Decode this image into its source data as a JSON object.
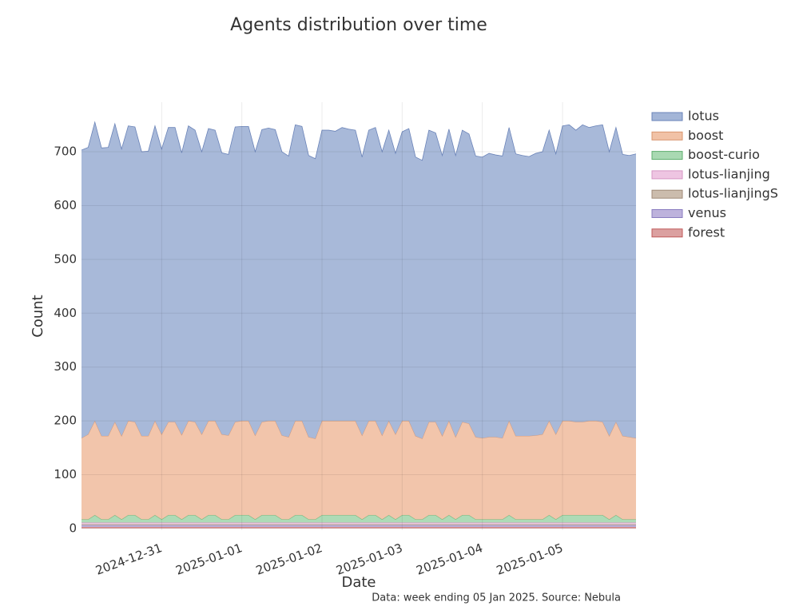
{
  "chart_data": {
    "type": "stacked-area",
    "title": "Agents distribution over time",
    "x_label": "Date",
    "y_label": "Count",
    "footnote": "Data: week ending 05 Jan 2025. Source: Nebula",
    "categories": [
      null,
      null,
      null,
      null,
      null,
      null,
      null,
      null,
      null,
      null,
      null,
      null,
      "2024-12-31",
      null,
      null,
      null,
      null,
      null,
      null,
      null,
      null,
      null,
      null,
      null,
      "2025-01-01",
      null,
      null,
      null,
      null,
      null,
      null,
      null,
      null,
      null,
      null,
      null,
      "2025-01-02",
      null,
      null,
      null,
      null,
      null,
      null,
      null,
      null,
      null,
      null,
      null,
      "2025-01-03",
      null,
      null,
      null,
      null,
      null,
      null,
      null,
      null,
      null,
      null,
      null,
      "2025-01-04",
      null,
      null,
      null,
      null,
      null,
      null,
      null,
      null,
      null,
      null,
      null,
      "2025-01-05",
      null,
      null,
      null,
      null,
      null,
      null,
      null,
      null,
      null,
      null,
      null
    ],
    "ylim": [
      -3,
      792
    ],
    "yticks": [
      0,
      100,
      200,
      300,
      400,
      500,
      600,
      700
    ],
    "grid": true,
    "legend": "right",
    "series": [
      {
        "name": "forest",
        "color": "#dba0a0",
        "line": "#c05a5a",
        "values": [
          3,
          3,
          3,
          3,
          3,
          3,
          3,
          3,
          3,
          3,
          3,
          3,
          3,
          3,
          3,
          3,
          3,
          3,
          3,
          3,
          3,
          3,
          3,
          3,
          3,
          3,
          3,
          3,
          3,
          3,
          3,
          3,
          3,
          3,
          3,
          3,
          3,
          3,
          3,
          3,
          3,
          3,
          3,
          3,
          3,
          3,
          3,
          3,
          3,
          3,
          3,
          3,
          3,
          3,
          3,
          3,
          3,
          3,
          3,
          3,
          3,
          3,
          3,
          3,
          3,
          3,
          3,
          3,
          3,
          3,
          3,
          3,
          3,
          3,
          3,
          3,
          3,
          3,
          3,
          3,
          3,
          3,
          3,
          3
        ]
      },
      {
        "name": "venus",
        "color": "#bdb2dc",
        "line": "#8a7cc0",
        "values": [
          3,
          3,
          3,
          3,
          3,
          3,
          3,
          3,
          3,
          3,
          3,
          3,
          3,
          3,
          3,
          3,
          3,
          3,
          3,
          3,
          3,
          3,
          3,
          3,
          3,
          3,
          3,
          3,
          3,
          3,
          3,
          3,
          3,
          3,
          3,
          3,
          3,
          3,
          3,
          3,
          3,
          3,
          3,
          3,
          3,
          3,
          3,
          3,
          3,
          3,
          3,
          3,
          3,
          3,
          3,
          3,
          3,
          3,
          3,
          3,
          3,
          3,
          3,
          3,
          3,
          3,
          3,
          3,
          3,
          3,
          3,
          3,
          3,
          3,
          3,
          3,
          3,
          3,
          3,
          3,
          3,
          3,
          3,
          3
        ]
      },
      {
        "name": "lotus-lianjingS",
        "color": "#cbbcad",
        "line": "#a08a78",
        "values": [
          2,
          2,
          2,
          2,
          2,
          2,
          2,
          2,
          2,
          2,
          2,
          2,
          2,
          2,
          2,
          2,
          2,
          2,
          2,
          2,
          2,
          2,
          2,
          2,
          2,
          2,
          2,
          2,
          2,
          2,
          2,
          2,
          2,
          2,
          2,
          2,
          2,
          2,
          2,
          2,
          2,
          2,
          2,
          2,
          2,
          2,
          2,
          2,
          2,
          2,
          2,
          2,
          2,
          2,
          2,
          2,
          2,
          2,
          2,
          2,
          2,
          2,
          2,
          2,
          2,
          2,
          2,
          2,
          2,
          2,
          2,
          2,
          2,
          2,
          2,
          2,
          2,
          2,
          2,
          2,
          2,
          2,
          2,
          2
        ]
      },
      {
        "name": "lotus-lianjing",
        "color": "#eec5e2",
        "line": "#d696c4",
        "values": [
          3,
          3,
          3,
          3,
          3,
          3,
          3,
          3,
          3,
          3,
          3,
          3,
          3,
          3,
          3,
          3,
          3,
          3,
          3,
          3,
          3,
          3,
          3,
          3,
          3,
          3,
          3,
          3,
          3,
          3,
          3,
          3,
          3,
          3,
          3,
          3,
          3,
          3,
          3,
          3,
          3,
          3,
          3,
          3,
          3,
          3,
          3,
          3,
          3,
          3,
          3,
          3,
          3,
          3,
          3,
          3,
          3,
          3,
          3,
          3,
          3,
          3,
          3,
          3,
          3,
          3,
          3,
          3,
          3,
          3,
          3,
          3,
          3,
          3,
          3,
          3,
          3,
          3,
          3,
          3,
          3,
          3,
          3,
          3
        ]
      },
      {
        "name": "boost-curio",
        "color": "#a9d9b2",
        "line": "#5fae6e",
        "values": [
          6,
          6,
          14,
          6,
          6,
          14,
          6,
          14,
          14,
          6,
          6,
          14,
          6,
          14,
          14,
          6,
          14,
          14,
          6,
          14,
          14,
          6,
          6,
          14,
          14,
          14,
          6,
          14,
          14,
          14,
          6,
          6,
          14,
          14,
          6,
          6,
          14,
          14,
          14,
          14,
          14,
          14,
          6,
          14,
          14,
          6,
          14,
          6,
          14,
          14,
          6,
          6,
          14,
          14,
          6,
          14,
          6,
          14,
          14,
          6,
          6,
          6,
          6,
          6,
          14,
          6,
          6,
          6,
          6,
          6,
          14,
          6,
          14,
          14,
          14,
          14,
          14,
          14,
          14,
          6,
          14,
          6,
          6,
          6
        ]
      },
      {
        "name": "boost",
        "color": "#f1c2a6",
        "line": "#d9956e",
        "values": [
          151,
          158,
          175,
          155,
          155,
          173,
          155,
          175,
          173,
          155,
          155,
          175,
          158,
          173,
          173,
          157,
          175,
          173,
          158,
          175,
          175,
          158,
          156,
          173,
          175,
          175,
          156,
          173,
          175,
          175,
          156,
          153,
          175,
          175,
          153,
          150,
          175,
          175,
          175,
          175,
          175,
          175,
          156,
          175,
          175,
          156,
          175,
          158,
          175,
          175,
          155,
          150,
          173,
          173,
          155,
          175,
          153,
          173,
          170,
          153,
          151,
          153,
          153,
          151,
          175,
          155,
          155,
          155,
          156,
          158,
          175,
          158,
          175,
          175,
          173,
          173,
          175,
          175,
          173,
          155,
          173,
          155,
          153,
          151
        ]
      },
      {
        "name": "lotus",
        "color": "#a3b5d7",
        "line": "#6a83b8",
        "values": [
          535,
          533,
          555,
          535,
          536,
          554,
          533,
          548,
          548,
          528,
          529,
          548,
          530,
          547,
          547,
          524,
          548,
          542,
          525,
          543,
          540,
          523,
          522,
          548,
          547,
          547,
          527,
          543,
          544,
          541,
          527,
          522,
          550,
          547,
          523,
          520,
          540,
          540,
          538,
          545,
          542,
          540,
          517,
          540,
          545,
          527,
          540,
          522,
          537,
          543,
          518,
          517,
          542,
          537,
          521,
          542,
          523,
          542,
          538,
          522,
          522,
          527,
          524,
          524,
          545,
          524,
          521,
          519,
          524,
          525,
          540,
          521,
          548,
          550,
          542,
          552,
          545,
          548,
          552,
          528,
          547,
          523,
          523,
          528
        ]
      }
    ]
  }
}
